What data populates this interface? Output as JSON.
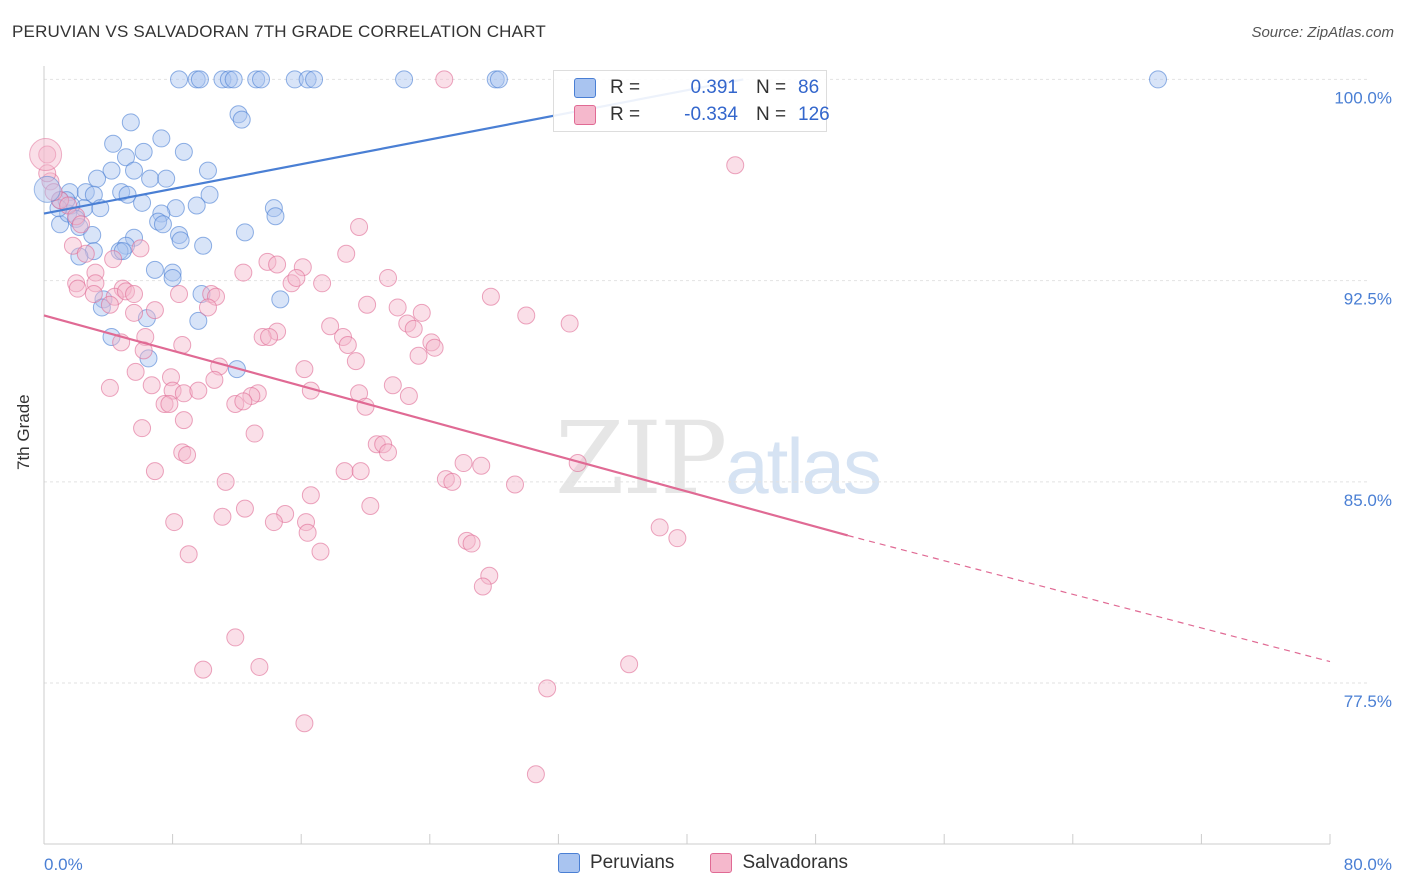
{
  "title": "PERUVIAN VS SALVADORAN 7TH GRADE CORRELATION CHART",
  "source": "Source: ZipAtlas.com",
  "watermark": {
    "left": "ZIP",
    "right": "atlas"
  },
  "legend": {
    "rows": [
      {
        "r_label": "R =",
        "r_value": "0.391",
        "n_label": "N =",
        "n_value": "86",
        "color": "#a9c4f0"
      },
      {
        "r_label": "R =",
        "r_value": "-0.334",
        "n_label": "N =",
        "n_value": "126",
        "color": "#f5b8cc"
      }
    ]
  },
  "bottom_legend": [
    {
      "label": "Peruvians",
      "color": "#a9c4f0"
    },
    {
      "label": "Salvadorans",
      "color": "#f5b8cc"
    }
  ],
  "chart_data": {
    "type": "scatter",
    "title": "PERUVIAN VS SALVADORAN 7TH GRADE CORRELATION CHART",
    "xlabel": "",
    "ylabel": "7th Grade",
    "xlim": [
      0,
      80
    ],
    "ylim": [
      71.5,
      100.5
    ],
    "x_tick_labels": [
      {
        "value": 0,
        "label": "0.0%"
      },
      {
        "value": 80,
        "label": "80.0%"
      }
    ],
    "y_tick_labels": [
      {
        "value": 100,
        "label": "100.0%"
      },
      {
        "value": 92.5,
        "label": "92.5%"
      },
      {
        "value": 85,
        "label": "85.0%"
      },
      {
        "value": 77.5,
        "label": "77.5%"
      }
    ],
    "grid": true,
    "series": [
      {
        "name": "Peruvians",
        "color": "#4a7fd4",
        "fill": "#a9c4f0",
        "trend": {
          "x0": 0,
          "y0": 95.0,
          "x1": 43.5,
          "y1": 100.0,
          "style": "solid"
        },
        "points": [
          [
            8.4,
            100
          ],
          [
            9.5,
            100
          ],
          [
            9.7,
            100
          ],
          [
            11.1,
            100
          ],
          [
            11.5,
            100
          ],
          [
            11.8,
            100
          ],
          [
            13.2,
            100
          ],
          [
            13.5,
            100
          ],
          [
            15.6,
            100
          ],
          [
            16.4,
            100
          ],
          [
            16.8,
            100
          ],
          [
            22.4,
            100
          ],
          [
            28.1,
            100
          ],
          [
            28.3,
            100
          ],
          [
            69.3,
            100
          ],
          [
            12.1,
            98.7
          ],
          [
            12.3,
            98.5
          ],
          [
            5.4,
            98.4
          ],
          [
            7.3,
            97.8
          ],
          [
            4.3,
            97.6
          ],
          [
            6.2,
            97.3
          ],
          [
            5.1,
            97.1
          ],
          [
            8.7,
            97.3
          ],
          [
            4.2,
            96.6
          ],
          [
            3.3,
            96.3
          ],
          [
            5.6,
            96.6
          ],
          [
            6.6,
            96.3
          ],
          [
            7.6,
            96.3
          ],
          [
            10.2,
            96.6
          ],
          [
            1.6,
            95.8
          ],
          [
            2.6,
            95.8
          ],
          [
            3.1,
            95.7
          ],
          [
            4.8,
            95.8
          ],
          [
            5.2,
            95.7
          ],
          [
            10.3,
            95.7
          ],
          [
            2.5,
            95.2
          ],
          [
            1.0,
            95.5
          ],
          [
            1.7,
            95.3
          ],
          [
            3.5,
            95.2
          ],
          [
            6.1,
            95.4
          ],
          [
            8.2,
            95.2
          ],
          [
            7.3,
            95.0
          ],
          [
            9.5,
            95.3
          ],
          [
            14.3,
            95.2
          ],
          [
            14.4,
            94.9
          ],
          [
            1.0,
            94.6
          ],
          [
            1.5,
            95.0
          ],
          [
            2.0,
            94.8
          ],
          [
            2.2,
            94.5
          ],
          [
            3.0,
            94.2
          ],
          [
            7.1,
            94.7
          ],
          [
            7.4,
            94.6
          ],
          [
            12.5,
            94.3
          ],
          [
            5.6,
            94.1
          ],
          [
            5.1,
            93.8
          ],
          [
            8.4,
            94.2
          ],
          [
            8.5,
            94.0
          ],
          [
            9.9,
            93.8
          ],
          [
            3.1,
            93.6
          ],
          [
            2.2,
            93.4
          ],
          [
            4.7,
            93.6
          ],
          [
            4.9,
            93.6
          ],
          [
            6.9,
            92.9
          ],
          [
            8.0,
            92.8
          ],
          [
            8.0,
            92.6
          ],
          [
            9.8,
            92.0
          ],
          [
            14.7,
            91.8
          ],
          [
            3.7,
            91.8
          ],
          [
            3.6,
            91.5
          ],
          [
            6.4,
            91.1
          ],
          [
            9.6,
            91.0
          ],
          [
            4.2,
            90.4
          ],
          [
            12.0,
            89.2
          ],
          [
            6.5,
            89.6
          ],
          [
            1.4,
            95.5
          ],
          [
            0.9,
            95.2
          ]
        ]
      },
      {
        "name": "Salvadorans",
        "color": "#e06a94",
        "fill": "#f5b8cc",
        "trend": {
          "x0": 0,
          "y0": 91.2,
          "x1": 50,
          "y1": 83.0,
          "style": "solid",
          "dash_to": {
            "x": 80,
            "y": 78.3
          }
        },
        "points": [
          [
            0.2,
            97.2
          ],
          [
            0.4,
            96.2
          ],
          [
            1.0,
            95.5
          ],
          [
            1.5,
            95.3
          ],
          [
            2.0,
            94.9
          ],
          [
            24.9,
            100
          ],
          [
            43.0,
            96.8
          ],
          [
            19.6,
            94.5
          ],
          [
            1.8,
            93.8
          ],
          [
            2.6,
            93.5
          ],
          [
            4.3,
            93.3
          ],
          [
            6.0,
            93.7
          ],
          [
            18.8,
            93.5
          ],
          [
            13.9,
            93.2
          ],
          [
            16.1,
            93.0
          ],
          [
            12.4,
            92.8
          ],
          [
            14.5,
            93.1
          ],
          [
            2.0,
            92.4
          ],
          [
            3.2,
            92.8
          ],
          [
            3.2,
            92.4
          ],
          [
            4.9,
            92.2
          ],
          [
            15.4,
            92.4
          ],
          [
            15.7,
            92.6
          ],
          [
            17.3,
            92.4
          ],
          [
            21.4,
            92.6
          ],
          [
            2.1,
            92.2
          ],
          [
            3.1,
            92.0
          ],
          [
            4.4,
            91.9
          ],
          [
            5.1,
            92.1
          ],
          [
            5.6,
            92.0
          ],
          [
            8.4,
            92.0
          ],
          [
            10.4,
            92.0
          ],
          [
            10.7,
            91.9
          ],
          [
            20.1,
            91.6
          ],
          [
            27.8,
            91.9
          ],
          [
            22.0,
            91.5
          ],
          [
            23.5,
            91.3
          ],
          [
            4.1,
            91.6
          ],
          [
            5.6,
            91.3
          ],
          [
            6.9,
            91.4
          ],
          [
            10.2,
            91.5
          ],
          [
            30.0,
            91.2
          ],
          [
            32.7,
            90.9
          ],
          [
            17.8,
            90.8
          ],
          [
            22.6,
            90.9
          ],
          [
            23.0,
            90.7
          ],
          [
            14.5,
            90.6
          ],
          [
            13.6,
            90.4
          ],
          [
            14.0,
            90.4
          ],
          [
            18.6,
            90.4
          ],
          [
            18.9,
            90.1
          ],
          [
            24.1,
            90.2
          ],
          [
            24.3,
            90.0
          ],
          [
            6.3,
            90.4
          ],
          [
            8.6,
            90.1
          ],
          [
            4.8,
            90.2
          ],
          [
            6.2,
            89.9
          ],
          [
            23.3,
            89.7
          ],
          [
            10.9,
            89.3
          ],
          [
            16.2,
            89.2
          ],
          [
            19.4,
            89.5
          ],
          [
            5.7,
            89.1
          ],
          [
            7.9,
            88.9
          ],
          [
            10.6,
            88.8
          ],
          [
            21.7,
            88.6
          ],
          [
            22.7,
            88.2
          ],
          [
            4.1,
            88.5
          ],
          [
            6.7,
            88.6
          ],
          [
            8.0,
            88.4
          ],
          [
            8.7,
            88.3
          ],
          [
            9.6,
            88.4
          ],
          [
            13.3,
            88.3
          ],
          [
            12.9,
            88.2
          ],
          [
            16.6,
            88.4
          ],
          [
            19.6,
            88.3
          ],
          [
            20.0,
            87.8
          ],
          [
            11.9,
            87.9
          ],
          [
            12.4,
            88.0
          ],
          [
            7.5,
            87.9
          ],
          [
            8.7,
            87.3
          ],
          [
            6.1,
            87.0
          ],
          [
            13.1,
            86.8
          ],
          [
            20.7,
            86.4
          ],
          [
            21.1,
            86.4
          ],
          [
            21.4,
            86.1
          ],
          [
            8.6,
            86.1
          ],
          [
            8.9,
            86.0
          ],
          [
            6.9,
            85.4
          ],
          [
            18.7,
            85.4
          ],
          [
            19.7,
            85.4
          ],
          [
            26.1,
            85.7
          ],
          [
            27.2,
            85.6
          ],
          [
            25.0,
            85.1
          ],
          [
            25.4,
            85.0
          ],
          [
            11.3,
            85.0
          ],
          [
            29.3,
            84.9
          ],
          [
            33.2,
            85.7
          ],
          [
            16.6,
            84.5
          ],
          [
            20.3,
            84.1
          ],
          [
            12.5,
            84.0
          ],
          [
            11.1,
            83.7
          ],
          [
            15.0,
            83.8
          ],
          [
            14.3,
            83.5
          ],
          [
            16.3,
            83.5
          ],
          [
            8.1,
            83.5
          ],
          [
            16.4,
            83.1
          ],
          [
            38.3,
            83.3
          ],
          [
            39.4,
            82.9
          ],
          [
            26.3,
            82.8
          ],
          [
            26.6,
            82.7
          ],
          [
            17.2,
            82.4
          ],
          [
            9.0,
            82.3
          ],
          [
            27.7,
            81.5
          ],
          [
            27.3,
            81.1
          ],
          [
            11.9,
            79.2
          ],
          [
            9.9,
            78.0
          ],
          [
            13.4,
            78.1
          ],
          [
            36.4,
            78.2
          ],
          [
            31.3,
            77.3
          ],
          [
            16.2,
            76.0
          ],
          [
            30.6,
            74.1
          ],
          [
            0.2,
            96.5
          ],
          [
            0.6,
            95.8
          ],
          [
            2.3,
            94.6
          ],
          [
            7.8,
            87.9
          ]
        ]
      }
    ]
  }
}
